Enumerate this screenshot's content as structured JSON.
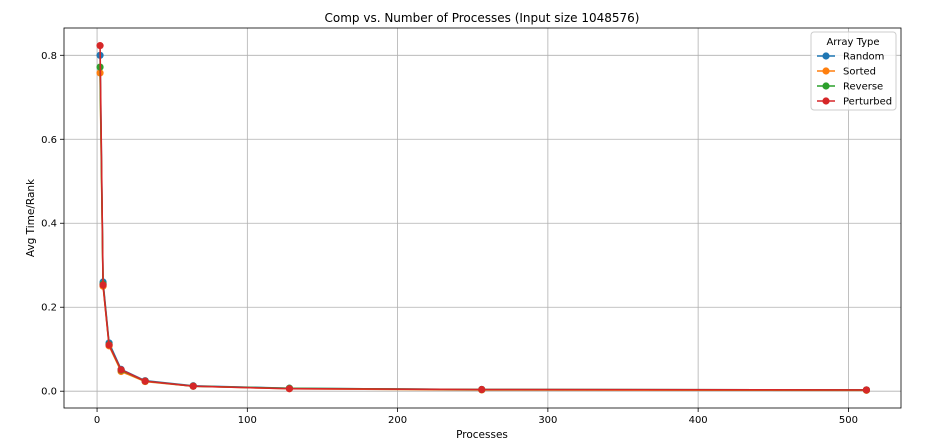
{
  "chart_data": {
    "type": "line",
    "title": "Comp vs. Number of Processes (Input size 1048576)",
    "xlabel": "Processes",
    "ylabel": "Avg Time/Rank",
    "xlim": [
      -22,
      535
    ],
    "ylim": [
      -0.04,
      0.865
    ],
    "xticks": [
      0,
      100,
      200,
      300,
      400,
      500
    ],
    "yticks": [
      0.0,
      0.2,
      0.4,
      0.6,
      0.8
    ],
    "ytick_labels": [
      "0.0",
      "0.2",
      "0.4",
      "0.6",
      "0.8"
    ],
    "grid": true,
    "legend": {
      "title": "Array Type",
      "placement": "top-right"
    },
    "x": [
      2,
      4,
      8,
      16,
      32,
      64,
      128,
      256,
      512
    ],
    "series": [
      {
        "name": "Random",
        "color": "#1f77b4",
        "values": [
          0.8,
          0.26,
          0.115,
          0.052,
          0.025,
          0.013,
          0.007,
          0.004,
          0.003
        ]
      },
      {
        "name": "Sorted",
        "color": "#ff7f0e",
        "values": [
          0.758,
          0.25,
          0.108,
          0.047,
          0.023,
          0.012,
          0.006,
          0.003,
          0.002
        ]
      },
      {
        "name": "Reverse",
        "color": "#2ca02c",
        "values": [
          0.772,
          0.255,
          0.111,
          0.05,
          0.024,
          0.012,
          0.007,
          0.004,
          0.003
        ]
      },
      {
        "name": "Perturbed",
        "color": "#d62728",
        "values": [
          0.823,
          0.253,
          0.11,
          0.051,
          0.024,
          0.012,
          0.006,
          0.004,
          0.003
        ]
      }
    ]
  }
}
